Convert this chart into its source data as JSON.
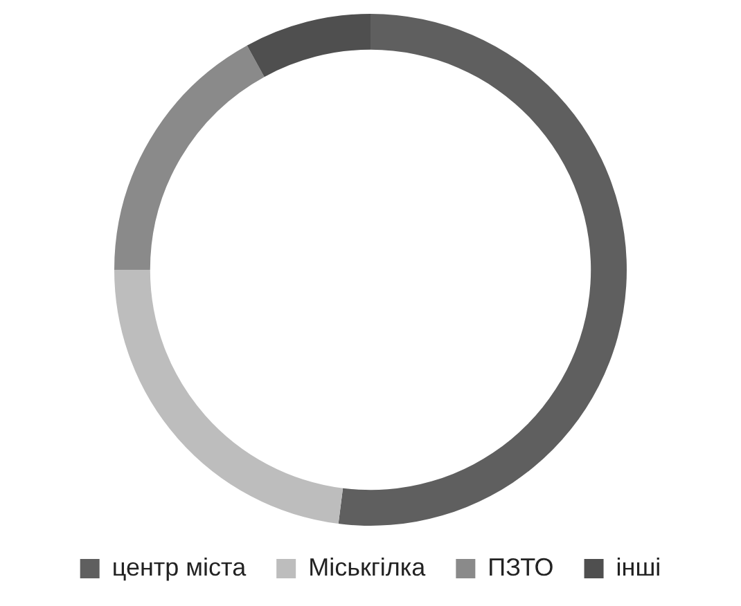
{
  "chart_data": {
    "type": "donut",
    "categories": [
      "центр міста",
      "Міськгілка",
      "ПЗТО",
      "інші"
    ],
    "values": [
      52,
      23,
      17,
      8
    ],
    "colors": [
      "#5f5f5f",
      "#bdbdbd",
      "#8a8a8a",
      "#4f4f4f"
    ],
    "legend": "bottom"
  }
}
